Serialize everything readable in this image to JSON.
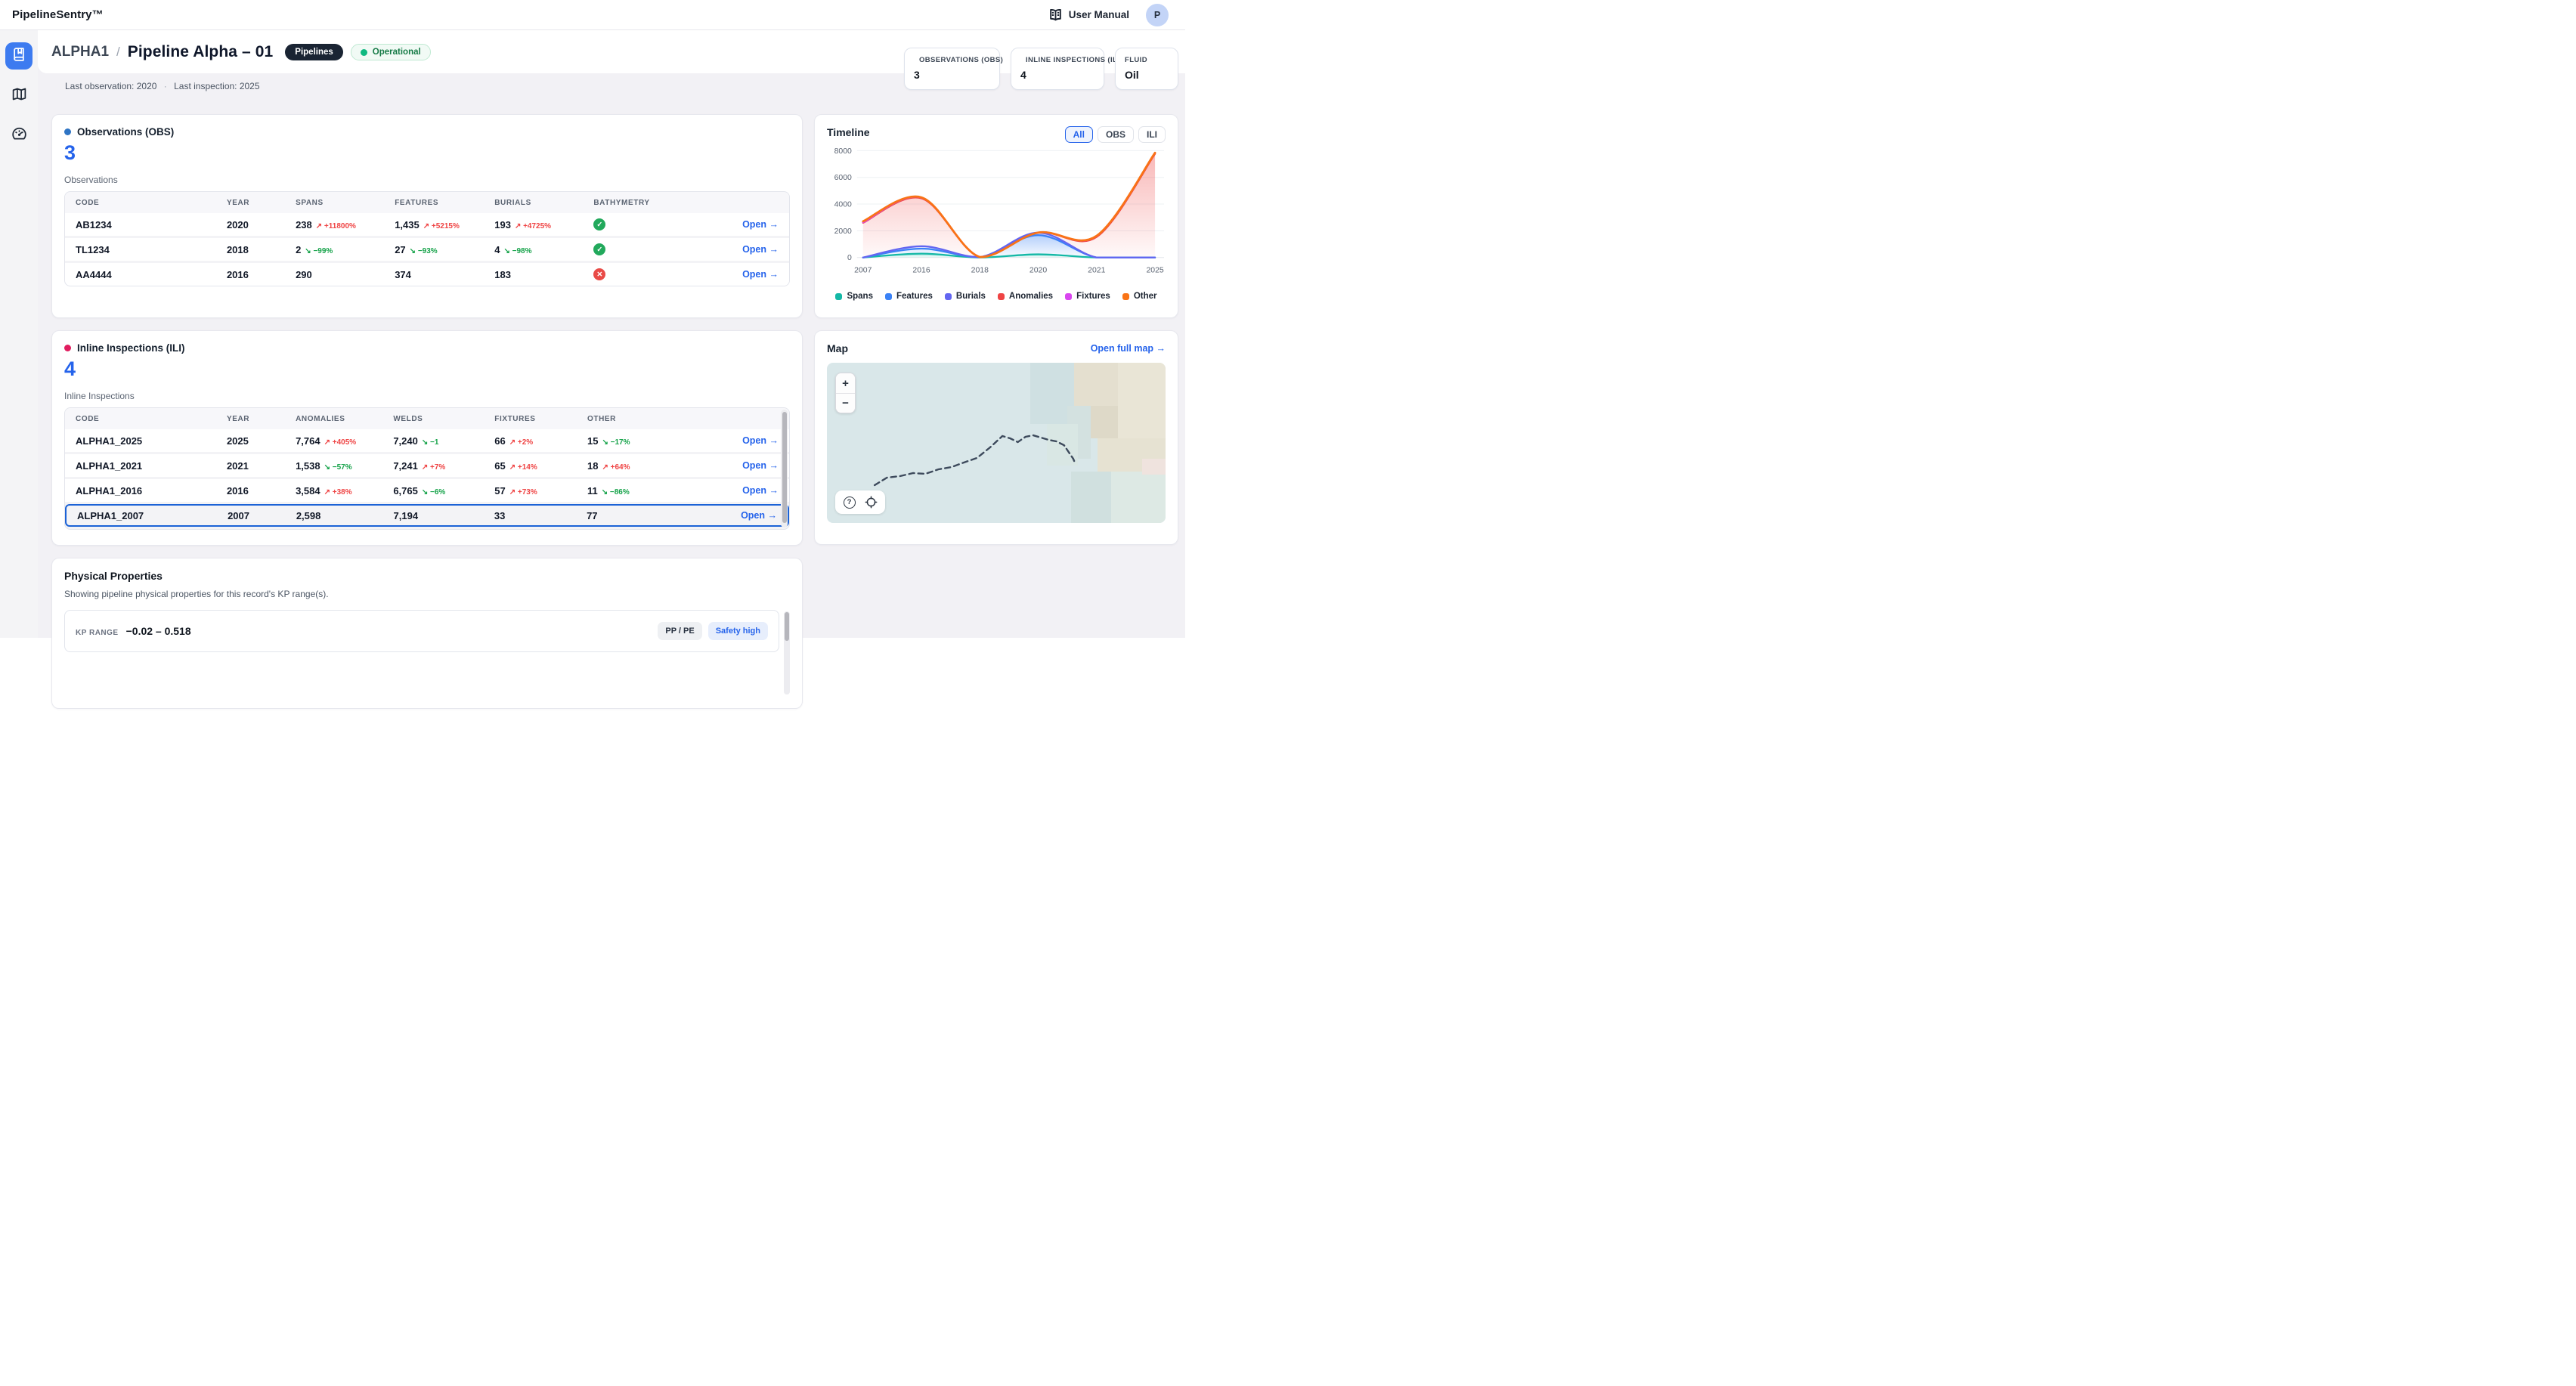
{
  "app": {
    "logo": "PipelineSentry™",
    "user_manual_label": "User Manual",
    "avatar_initial": "P"
  },
  "page": {
    "code": "ALPHA1",
    "separator": "/",
    "title": "Pipeline Alpha – 01",
    "type_badge": "Pipelines",
    "status_badge": "Operational",
    "status_color": "#10b981",
    "meta_observation": "Last observation: 2020",
    "meta_dot": "·",
    "meta_inspection": "Last inspection: 2025"
  },
  "stats": [
    {
      "label": "OBSERVATIONS (OBS)",
      "value": "3",
      "dot": "#2b6cb5"
    },
    {
      "label": "INLINE INSPECTIONS (ILI)",
      "value": "4",
      "dot": "#e2266b"
    },
    {
      "label": "FLUID",
      "value": "Oil",
      "dot": null
    }
  ],
  "observations": {
    "title": "Observations (OBS)",
    "dot": "#2e74c4",
    "count": "3",
    "table_label": "Observations",
    "columns": [
      "CODE",
      "YEAR",
      "SPANS",
      "FEATURES",
      "BURIALS",
      "BATHYMETRY"
    ],
    "open_label": "Open →",
    "rows": [
      {
        "code": "AB1234",
        "year": "2020",
        "metrics": [
          {
            "v": "238",
            "trend": {
              "dir": "up",
              "text": "+11800%"
            }
          },
          {
            "v": "1,435",
            "trend": {
              "dir": "up",
              "text": "+5215%"
            }
          },
          {
            "v": "193",
            "trend": {
              "dir": "up",
              "text": "+4725%"
            }
          }
        ],
        "bathymetry": "ok",
        "selected": false
      },
      {
        "code": "TL1234",
        "year": "2018",
        "metrics": [
          {
            "v": "2",
            "trend": {
              "dir": "down",
              "text": "−99%"
            }
          },
          {
            "v": "27",
            "trend": {
              "dir": "down",
              "text": "−93%"
            }
          },
          {
            "v": "4",
            "trend": {
              "dir": "down",
              "text": "−98%"
            }
          }
        ],
        "bathymetry": "ok",
        "selected": false
      },
      {
        "code": "AA4444",
        "year": "2016",
        "metrics": [
          {
            "v": "290",
            "trend": null
          },
          {
            "v": "374",
            "trend": null
          },
          {
            "v": "183",
            "trend": null
          }
        ],
        "bathymetry": "bad",
        "selected": false
      }
    ]
  },
  "ili": {
    "title": "Inline Inspections (ILI)",
    "dot": "#e11d5f",
    "count": "4",
    "table_label": "Inline Inspections",
    "columns": [
      "CODE",
      "YEAR",
      "ANOMALIES",
      "WELDS",
      "FIXTURES",
      "OTHER"
    ],
    "open_label": "Open →",
    "rows": [
      {
        "code": "ALPHA1_2025",
        "year": "2025",
        "metrics": [
          {
            "v": "7,764",
            "trend": {
              "dir": "up",
              "text": "+405%"
            }
          },
          {
            "v": "7,240",
            "trend": {
              "dir": "down",
              "text": "−1"
            }
          },
          {
            "v": "66",
            "trend": {
              "dir": "up",
              "text": "+2%"
            }
          },
          {
            "v": "15",
            "trend": {
              "dir": "down",
              "text": "−17%"
            }
          }
        ],
        "selected": false
      },
      {
        "code": "ALPHA1_2021",
        "year": "2021",
        "metrics": [
          {
            "v": "1,538",
            "trend": {
              "dir": "down",
              "text": "−57%"
            }
          },
          {
            "v": "7,241",
            "trend": {
              "dir": "up",
              "text": "+7%"
            }
          },
          {
            "v": "65",
            "trend": {
              "dir": "up",
              "text": "+14%"
            }
          },
          {
            "v": "18",
            "trend": {
              "dir": "up",
              "text": "+64%"
            }
          }
        ],
        "selected": false
      },
      {
        "code": "ALPHA1_2016",
        "year": "2016",
        "metrics": [
          {
            "v": "3,584",
            "trend": {
              "dir": "up",
              "text": "+38%"
            }
          },
          {
            "v": "6,765",
            "trend": {
              "dir": "down",
              "text": "−6%"
            }
          },
          {
            "v": "57",
            "trend": {
              "dir": "up",
              "text": "+73%"
            }
          },
          {
            "v": "11",
            "trend": {
              "dir": "down",
              "text": "−86%"
            }
          }
        ],
        "selected": false
      },
      {
        "code": "ALPHA1_2007",
        "year": "2007",
        "metrics": [
          {
            "v": "2,598",
            "trend": null
          },
          {
            "v": "7,194",
            "trend": null
          },
          {
            "v": "33",
            "trend": null
          },
          {
            "v": "77",
            "trend": null
          }
        ],
        "selected": true
      }
    ]
  },
  "timeline": {
    "title": "Timeline",
    "filters": [
      {
        "label": "All",
        "active": true
      },
      {
        "label": "OBS",
        "active": false
      },
      {
        "label": "ILI",
        "active": false
      }
    ]
  },
  "chart_data": {
    "type": "area",
    "stacked": true,
    "title": "Timeline",
    "categories": [
      "2007",
      "2016",
      "2018",
      "2020",
      "2021",
      "2025"
    ],
    "series": [
      {
        "name": "Spans",
        "color": "#14b8a6",
        "values": [
          0,
          290,
          2,
          238,
          0,
          0
        ]
      },
      {
        "name": "Features",
        "color": "#3b82f6",
        "values": [
          0,
          374,
          27,
          1435,
          0,
          0
        ]
      },
      {
        "name": "Burials",
        "color": "#6366f1",
        "values": [
          0,
          183,
          4,
          193,
          0,
          0
        ]
      },
      {
        "name": "Anomalies",
        "color": "#ef4444",
        "values": [
          2598,
          3584,
          0,
          0,
          1538,
          7764
        ]
      },
      {
        "name": "Fixtures",
        "color": "#d946ef",
        "values": [
          33,
          57,
          0,
          0,
          65,
          66
        ]
      },
      {
        "name": "Other",
        "color": "#f97316",
        "values": [
          77,
          11,
          0,
          0,
          18,
          15
        ]
      }
    ],
    "ylim": [
      0,
      8000
    ],
    "yticks": [
      0,
      2000,
      4000,
      6000,
      8000
    ],
    "grid": true,
    "legend_position": "bottom"
  },
  "map": {
    "title": "Map",
    "open_link": "Open full map →",
    "zoom_in": "+",
    "zoom_out": "−"
  },
  "physical": {
    "title": "Physical Properties",
    "subtitle": "Showing pipeline physical properties for this record's KP range(s).",
    "kp_label": "KP RANGE",
    "kp_value": "−0.02 – 0.518",
    "badges": [
      {
        "label": "PP / PE",
        "style": "gray"
      },
      {
        "label": "Safety high",
        "style": "blue"
      }
    ]
  }
}
